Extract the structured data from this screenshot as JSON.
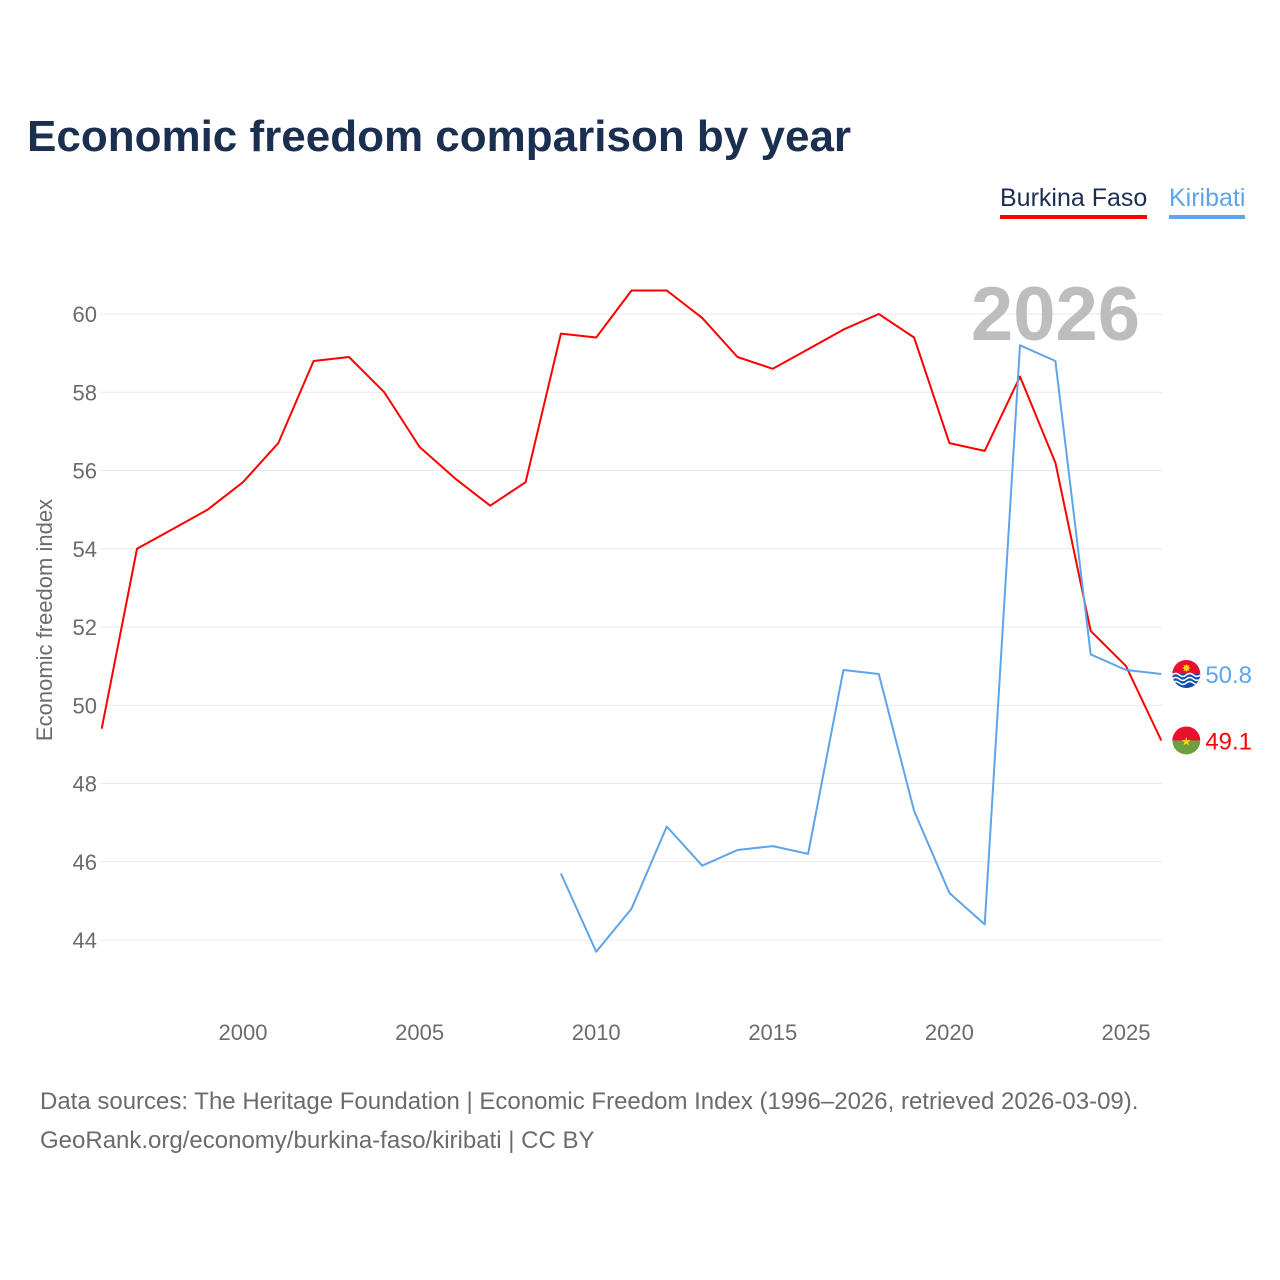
{
  "chart_data": {
    "type": "line",
    "title": "Economic freedom comparison by year",
    "xlabel": "",
    "ylabel": "Economic freedom index",
    "xlim": [
      1996,
      2026
    ],
    "ylim": [
      42.7,
      61.5
    ],
    "x_ticks": [
      2000,
      2005,
      2010,
      2015,
      2020,
      2025
    ],
    "y_ticks": [
      44,
      46,
      48,
      50,
      52,
      54,
      56,
      58,
      60
    ],
    "grid": true,
    "legend_position": "top-right",
    "year_watermark": "2026",
    "series": [
      {
        "name": "Burkina Faso",
        "color": "#ff0000",
        "end_label": "49.1",
        "x": [
          1996,
          1997,
          1998,
          1999,
          2000,
          2001,
          2002,
          2003,
          2004,
          2005,
          2006,
          2007,
          2008,
          2009,
          2010,
          2011,
          2012,
          2013,
          2014,
          2015,
          2016,
          2017,
          2018,
          2019,
          2020,
          2021,
          2022,
          2023,
          2024,
          2025,
          2026
        ],
        "values": [
          49.4,
          54.0,
          54.5,
          55.0,
          55.7,
          56.7,
          58.8,
          58.9,
          58.0,
          56.6,
          55.8,
          55.1,
          55.7,
          59.5,
          59.4,
          60.6,
          60.6,
          59.9,
          58.9,
          58.6,
          59.1,
          59.6,
          60.0,
          59.4,
          56.7,
          56.5,
          58.4,
          56.2,
          51.9,
          51.0,
          49.1
        ]
      },
      {
        "name": "Kiribati",
        "color": "#5ea4ea",
        "end_label": "50.8",
        "x": [
          2009,
          2010,
          2011,
          2012,
          2013,
          2014,
          2015,
          2016,
          2017,
          2018,
          2019,
          2020,
          2021,
          2022,
          2023,
          2024,
          2025,
          2026
        ],
        "values": [
          45.7,
          43.7,
          44.8,
          46.9,
          45.9,
          46.3,
          46.4,
          46.2,
          50.9,
          50.8,
          47.3,
          45.2,
          44.4,
          59.2,
          58.8,
          51.3,
          50.9,
          50.8
        ]
      }
    ]
  },
  "footer": {
    "source_line": "Data sources: The Heritage Foundation | Economic Freedom Index (1996–2026, retrieved 2026-03-09).",
    "credit_line": "GeoRank.org/economy/burkina-faso/kiribati | CC BY"
  }
}
